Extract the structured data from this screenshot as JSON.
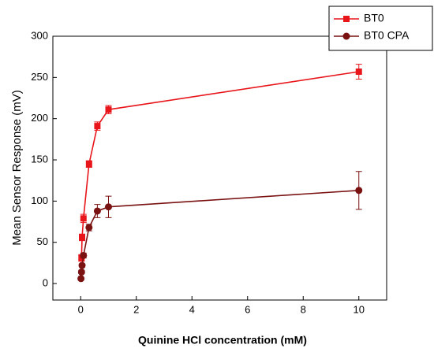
{
  "chart_data": {
    "type": "line",
    "xlabel": "Quinine HCl concentration (mM)",
    "ylabel": "Mean Sensor Response (mV)",
    "xlim": [
      -1,
      11
    ],
    "xticks": [
      0,
      2,
      4,
      6,
      8,
      10
    ],
    "ylim": [
      -20,
      300
    ],
    "yticks": [
      0,
      50,
      100,
      150,
      200,
      250,
      300
    ],
    "legend": "upper right",
    "series": [
      {
        "name": "BT0",
        "color": "#e8151b",
        "marker": "square",
        "x": [
          0.03,
          0.05,
          0.1,
          0.3,
          0.6,
          1,
          10
        ],
        "values": [
          31,
          56,
          79,
          145,
          191,
          211,
          257
        ],
        "errors": [
          4,
          4,
          5,
          4,
          5,
          5,
          9
        ]
      },
      {
        "name": "BT0 CPA",
        "color": "#7a1212",
        "marker": "circle",
        "x": [
          0.01,
          0.03,
          0.05,
          0.1,
          0.3,
          0.6,
          1,
          10
        ],
        "values": [
          6,
          14,
          22,
          34,
          68,
          88,
          93,
          113
        ],
        "errors": [
          1,
          2,
          2,
          3,
          4,
          8,
          13,
          23
        ]
      }
    ]
  }
}
